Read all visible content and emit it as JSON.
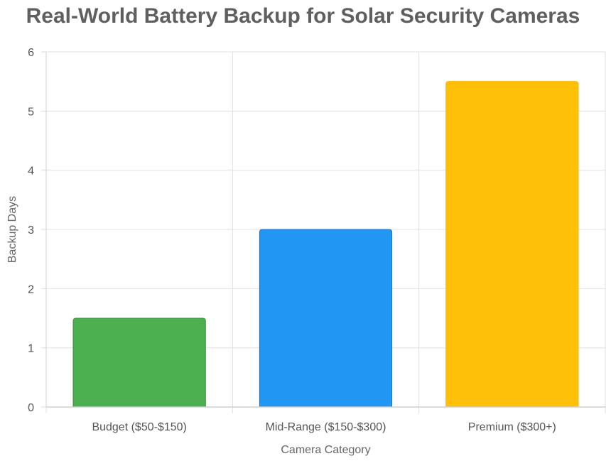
{
  "chart_data": {
    "type": "bar",
    "title": "Real-World Battery Backup for Solar Security Cameras",
    "xlabel": "Camera Category",
    "ylabel": "Backup Days",
    "categories": [
      "Budget ($50-$150)",
      "Mid-Range ($150-$300)",
      "Premium ($300+)"
    ],
    "values": [
      1.5,
      3,
      5.5
    ],
    "colors": [
      "#4caf50",
      "#2196f3",
      "#ffc107"
    ],
    "border_colors": [
      "#388e3c",
      "#1976d2",
      "#ffb300"
    ],
    "ylim": [
      0,
      6
    ],
    "yticks": [
      0,
      1,
      2,
      3,
      4,
      5,
      6
    ],
    "grid": true,
    "legend": "none"
  }
}
